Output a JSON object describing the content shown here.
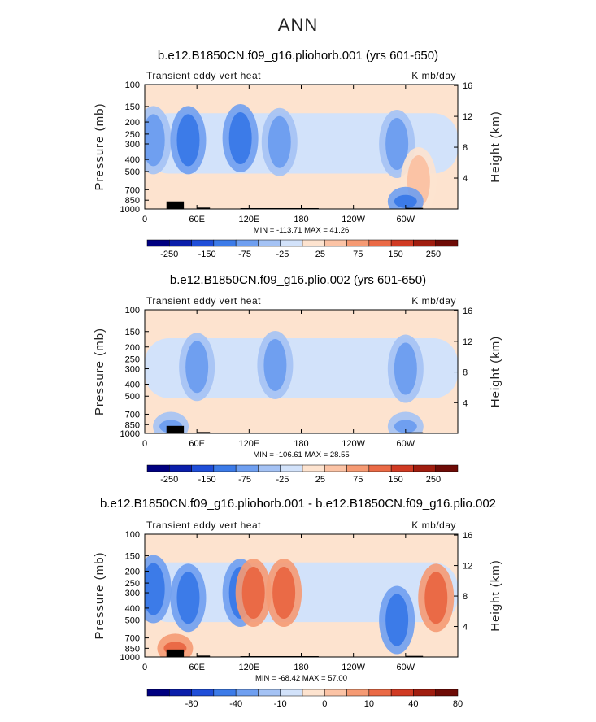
{
  "page": {
    "title": "ANN"
  },
  "panels": [
    {
      "title": "b.e12.B1850CN.f09_g16.pliohorb.001 (yrs 601-650)",
      "variable": "Transient eddy vert heat",
      "units": "K mb/day",
      "min_max": "MIN = -113.71   MAX =  41.26",
      "colorbar": [
        "-250",
        "-150",
        "-75",
        "-25",
        "25",
        "75",
        "150",
        "250"
      ]
    },
    {
      "title": "b.e12.B1850CN.f09_g16.plio.002 (yrs 601-650)",
      "variable": "Transient eddy vert heat",
      "units": "K mb/day",
      "min_max": "MIN = -106.61   MAX =  28.55",
      "colorbar": [
        "-250",
        "-150",
        "-75",
        "-25",
        "25",
        "75",
        "150",
        "250"
      ]
    },
    {
      "title": "b.e12.B1850CN.f09_g16.pliohorb.001 - b.e12.B1850CN.f09_g16.plio.002",
      "variable": "Transient eddy vert heat",
      "units": "K mb/day",
      "min_max": "MIN = -68.42   MAX =  57.00",
      "colorbar": [
        "-80",
        "-40",
        "-10",
        "0",
        "10",
        "40",
        "80"
      ]
    }
  ],
  "axes": {
    "ylabel": "Pressure (mb)",
    "y2label": "Height (km)",
    "pressure_ticks": [
      "100",
      "150",
      "200",
      "250",
      "300",
      "400",
      "500",
      "700",
      "850",
      "1000"
    ],
    "height_ticks": [
      "16",
      "12",
      "8",
      "4"
    ],
    "lon_ticks": [
      "0",
      "60E",
      "120E",
      "180",
      "120W",
      "60W"
    ]
  },
  "chart_data": [
    {
      "type": "heatmap",
      "title": "b.e12.B1850CN.f09_g16.pliohorb.001 (yrs 601-650)",
      "variable": "Transient eddy vert heat",
      "units": "K mb/day",
      "ylabel": "Pressure (mb)",
      "y2label": "Height (km)",
      "ylim": [
        1000,
        100
      ],
      "y_scale": "log",
      "x_ticks": [
        "0",
        "60E",
        "120E",
        "180",
        "120W",
        "60W"
      ],
      "min": -113.71,
      "max": 41.26,
      "levels": [
        -250,
        -150,
        -75,
        -25,
        25,
        75,
        150,
        250
      ],
      "features": [
        {
          "lon": 10,
          "p": 280,
          "level": -75
        },
        {
          "lon": 50,
          "p": 280,
          "level": -150
        },
        {
          "lon": 110,
          "p": 270,
          "level": -150
        },
        {
          "lon": 155,
          "p": 290,
          "level": -75
        },
        {
          "lon": 290,
          "p": 300,
          "level": -75
        },
        {
          "lon": 315,
          "p": 600,
          "level": 25
        },
        {
          "lon": 300,
          "p": 870,
          "level": -150
        }
      ]
    },
    {
      "type": "heatmap",
      "title": "b.e12.B1850CN.f09_g16.plio.002 (yrs 601-650)",
      "variable": "Transient eddy vert heat",
      "units": "K mb/day",
      "ylabel": "Pressure (mb)",
      "y2label": "Height (km)",
      "ylim": [
        1000,
        100
      ],
      "y_scale": "log",
      "x_ticks": [
        "0",
        "60E",
        "120E",
        "180",
        "120W",
        "60W"
      ],
      "min": -106.61,
      "max": 28.55,
      "levels": [
        -250,
        -150,
        -75,
        -25,
        25,
        75,
        150,
        250
      ],
      "features": [
        {
          "lon": 60,
          "p": 290,
          "level": -75
        },
        {
          "lon": 150,
          "p": 280,
          "level": -75
        },
        {
          "lon": 300,
          "p": 300,
          "level": -75
        },
        {
          "lon": 30,
          "p": 880,
          "level": -75
        },
        {
          "lon": 300,
          "p": 880,
          "level": -75
        }
      ]
    },
    {
      "type": "heatmap",
      "title": "b.e12.B1850CN.f09_g16.pliohorb.001 - b.e12.B1850CN.f09_g16.plio.002",
      "variable": "Transient eddy vert heat",
      "units": "K mb/day",
      "ylabel": "Pressure (mb)",
      "y2label": "Height (km)",
      "ylim": [
        1000,
        100
      ],
      "y_scale": "log",
      "x_ticks": [
        "0",
        "60E",
        "120E",
        "180",
        "120W",
        "60W"
      ],
      "min": -68.42,
      "max": 57.0,
      "levels": [
        -80,
        -40,
        -10,
        0,
        10,
        40,
        80
      ],
      "features": [
        {
          "lon": 10,
          "p": 280,
          "level": -40
        },
        {
          "lon": 50,
          "p": 330,
          "level": -40
        },
        {
          "lon": 110,
          "p": 300,
          "level": -40
        },
        {
          "lon": 125,
          "p": 300,
          "level": 40
        },
        {
          "lon": 160,
          "p": 300,
          "level": 40
        },
        {
          "lon": 290,
          "p": 500,
          "level": -40
        },
        {
          "lon": 335,
          "p": 330,
          "level": 40
        },
        {
          "lon": 35,
          "p": 850,
          "level": 40
        }
      ]
    }
  ],
  "colors": {
    "background_fill": "#fde3cf",
    "scale_all": [
      "#000080",
      "#0a1eaa",
      "#1f4ed8",
      "#3c7be8",
      "#6f9ff0",
      "#a4c2f4",
      "#d2e2fa",
      "#fde3cf",
      "#fbc3a5",
      "#f59a73",
      "#ea6a46",
      "#d03a23",
      "#a01d0f",
      "#6e0b06"
    ],
    "scale_diff": [
      "#000080",
      "#0a1eaa",
      "#1f4ed8",
      "#3c7be8",
      "#6f9ff0",
      "#a4c2f4",
      "#d2e2fa",
      "#fde3cf",
      "#fbc3a5",
      "#f59a73",
      "#ea6a46",
      "#d03a23",
      "#a01d0f",
      "#6e0b06"
    ],
    "topography": "#000000"
  }
}
